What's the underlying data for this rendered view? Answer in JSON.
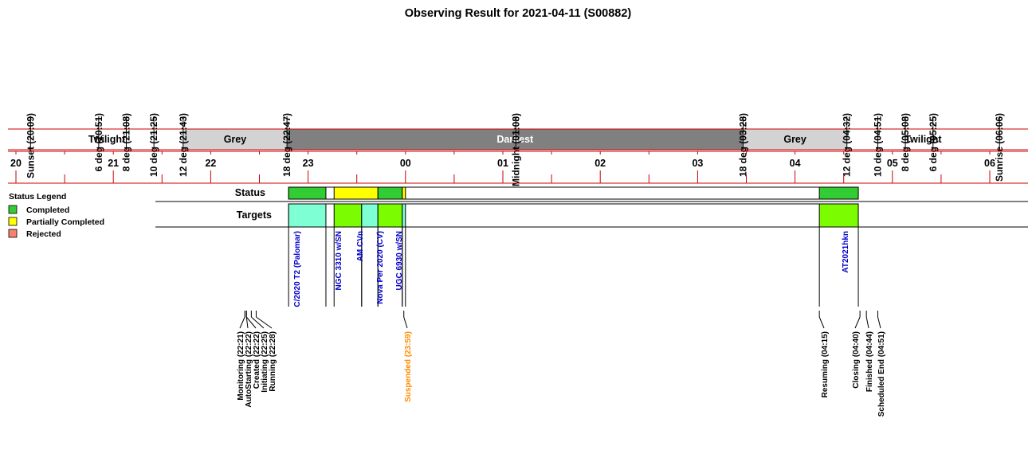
{
  "chart_data": {
    "type": "timeline",
    "title": "Observing Result for 2021-04-11 (S00882)",
    "time_axis": {
      "range_hours": [
        19.775,
        30.25
      ],
      "hour_ticks": [
        {
          "h": 20,
          "label": "20"
        },
        {
          "h": 21,
          "label": "21"
        },
        {
          "h": 22,
          "label": "22"
        },
        {
          "h": 23,
          "label": "23"
        },
        {
          "h": 24,
          "label": "00"
        },
        {
          "h": 25,
          "label": "01"
        },
        {
          "h": 26,
          "label": "02"
        },
        {
          "h": 27,
          "label": "03"
        },
        {
          "h": 28,
          "label": "04"
        },
        {
          "h": 29,
          "label": "05"
        },
        {
          "h": 30,
          "label": "06"
        }
      ]
    },
    "sky_events": [
      {
        "label": "Sunset (20:09)",
        "t": 20.15
      },
      {
        "label": "6 deg (20:51)",
        "t": 20.85
      },
      {
        "label": "8 deg (21:08)",
        "t": 21.133
      },
      {
        "label": "10 deg (21:25)",
        "t": 21.417
      },
      {
        "label": "12 deg (21:43)",
        "t": 21.717
      },
      {
        "label": "18 deg (22:47)",
        "t": 22.783
      },
      {
        "label": "Midnight (01:08)",
        "t": 25.133
      },
      {
        "label": "18 deg (03:28)",
        "t": 27.467
      },
      {
        "label": "12 deg (04:32)",
        "t": 28.533
      },
      {
        "label": "10 deg (04:51)",
        "t": 28.85
      },
      {
        "label": "8 deg (05:08)",
        "t": 29.133
      },
      {
        "label": "6 deg (05:25)",
        "t": 29.417
      },
      {
        "label": "Sunrise (06:06)",
        "t": 30.1
      }
    ],
    "sky_periods": [
      {
        "label": "Twilight",
        "start": 20.15,
        "end": 21.717,
        "color": "#ffffff",
        "text_color": "#000000"
      },
      {
        "label": "Grey",
        "start": 21.717,
        "end": 22.783,
        "color": "#d3d3d3",
        "text_color": "#000000"
      },
      {
        "label": "Darkest",
        "start": 22.783,
        "end": 27.467,
        "color": "#808080",
        "text_color": "#ffffff"
      },
      {
        "label": "Grey",
        "start": 27.467,
        "end": 28.533,
        "color": "#d3d3d3",
        "text_color": "#000000"
      },
      {
        "label": "Twilight",
        "start": 28.533,
        "end": 30.1,
        "color": "#ffffff",
        "text_color": "#000000"
      }
    ],
    "rows": {
      "status_label": "Status",
      "targets_label": "Targets"
    },
    "status_blocks": [
      {
        "start": 22.8,
        "end": 23.183,
        "status": "Completed"
      },
      {
        "start": 23.267,
        "end": 23.717,
        "status": "Partially Completed"
      },
      {
        "start": 23.717,
        "end": 23.967,
        "status": "Completed"
      },
      {
        "start": 23.967,
        "end": 24.0,
        "status": "Partially Completed"
      },
      {
        "start": 28.25,
        "end": 28.65,
        "status": "Completed"
      }
    ],
    "targets": [
      {
        "name": "C/2020 T2 (Palomar)",
        "start": 22.8,
        "end": 23.183,
        "color": "#7fffd4"
      },
      {
        "name": "NGC 3310 w/SN",
        "start": 23.267,
        "end": 23.55,
        "color": "#7cfc00"
      },
      {
        "name": "AM CVn",
        "start": 23.55,
        "end": 23.717,
        "color": "#7fffd4"
      },
      {
        "name": "Nova Per 2020 (CV)",
        "start": 23.717,
        "end": 23.967,
        "color": "#7cfc00"
      },
      {
        "name": "UGC 6930 w/SN",
        "start": 23.967,
        "end": 24.0,
        "color": "#7fffd4"
      },
      {
        "name": "AT2021hkn",
        "start": 28.25,
        "end": 28.65,
        "color": "#7cfc00"
      }
    ],
    "run_events": [
      {
        "label": "Monitoring (22:21)",
        "t": 22.35,
        "color": "#000000"
      },
      {
        "label": "AutoStarting (22:22)",
        "t": 22.367,
        "color": "#000000"
      },
      {
        "label": "Created (22:22)",
        "t": 22.367,
        "color": "#000000"
      },
      {
        "label": "Initiating (22:25)",
        "t": 22.417,
        "color": "#000000"
      },
      {
        "label": "Running (22:28)",
        "t": 22.467,
        "color": "#000000"
      },
      {
        "label": "Suspended (23:59)",
        "t": 23.983,
        "color": "#ff8c00"
      },
      {
        "label": "Resuming (04:15)",
        "t": 28.25,
        "color": "#000000"
      },
      {
        "label": "Closing (04:40)",
        "t": 28.667,
        "color": "#000000"
      },
      {
        "label": "Finished (04:44)",
        "t": 28.733,
        "color": "#000000"
      },
      {
        "label": "Scheduled End (04:51)",
        "t": 28.85,
        "color": "#000000"
      }
    ],
    "legend": {
      "title": "Status Legend",
      "entries": [
        {
          "label": "Completed",
          "color": "#32cd32"
        },
        {
          "label": "Partially Completed",
          "color": "#ffff00"
        },
        {
          "label": "Rejected",
          "color": "#fa8072"
        }
      ]
    },
    "colors": {
      "axis_red": "#cc0000",
      "target_text": "#0000cd",
      "status_gap": "#ffffff"
    }
  }
}
